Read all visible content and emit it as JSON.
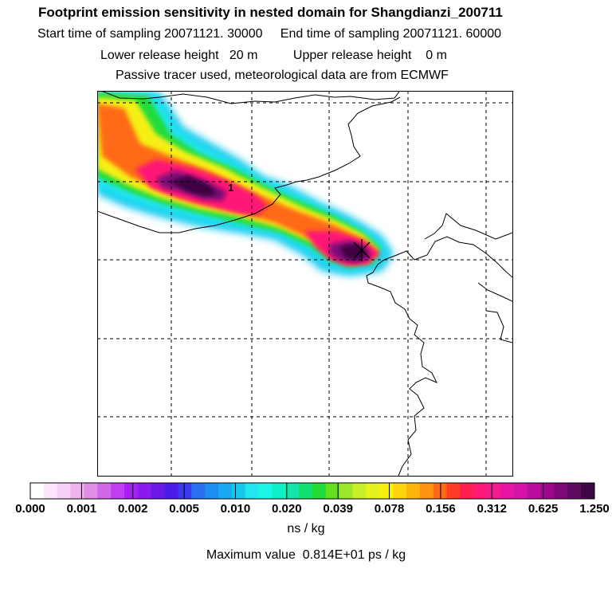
{
  "title": "Footprint emission sensitivity in nested domain for Shangdianzi_200711",
  "sampling_line": "Start time of sampling 20071121. 30000     End time of sampling 20071121. 60000",
  "release_line": "Lower release height   20 m          Upper release height    0 m",
  "tracer_line": "Passive tracer used, meteorological data are from ECMWF",
  "station_marker": "1",
  "colorbar": {
    "ticks": [
      "0.000",
      "0.001",
      "0.002",
      "0.005",
      "0.010",
      "0.020",
      "0.039",
      "0.078",
      "0.156",
      "0.312",
      "0.625",
      "1.250"
    ],
    "colors": [
      "#ffffff",
      "#fbe6fb",
      "#f5cff5",
      "#eeb4ee",
      "#e08ee8",
      "#d068e8",
      "#bf3ff0",
      "#a61ff5",
      "#8a1aef",
      "#6a18e8",
      "#4c1be8",
      "#3a3af0",
      "#2a6ff2",
      "#1e8df3",
      "#17a9f1",
      "#19c6ee",
      "#22e6ef",
      "#19f6e6",
      "#10f0c8",
      "#14e4a8",
      "#12e070",
      "#22dc3a",
      "#62e01e",
      "#9ce82a",
      "#c8f02a",
      "#e6f21e",
      "#f6ef12",
      "#ffd60c",
      "#ffb50c",
      "#ff9410",
      "#ff6a16",
      "#ff3c24",
      "#ff1e50",
      "#ff1876",
      "#f51a90",
      "#e814a4",
      "#d412a8",
      "#bb0ca0",
      "#9e0890",
      "#7e0878",
      "#5e0a60",
      "#3e0642"
    ],
    "unit": "ns / kg"
  },
  "max_value": "Maximum value  0.814E+01 ps / kg",
  "plume_colors": {
    "outer": "#19c6ee",
    "cyan": "#22e6ef",
    "green": "#22dc3a",
    "yellow": "#f6ef12",
    "orange": "#ff6a16",
    "magenta": "#ff1876",
    "purple": "#7e0878",
    "dark": "#3e0642"
  },
  "map_style": {
    "frame": "#000000",
    "coastline": "#000000",
    "grid": "#000000"
  }
}
